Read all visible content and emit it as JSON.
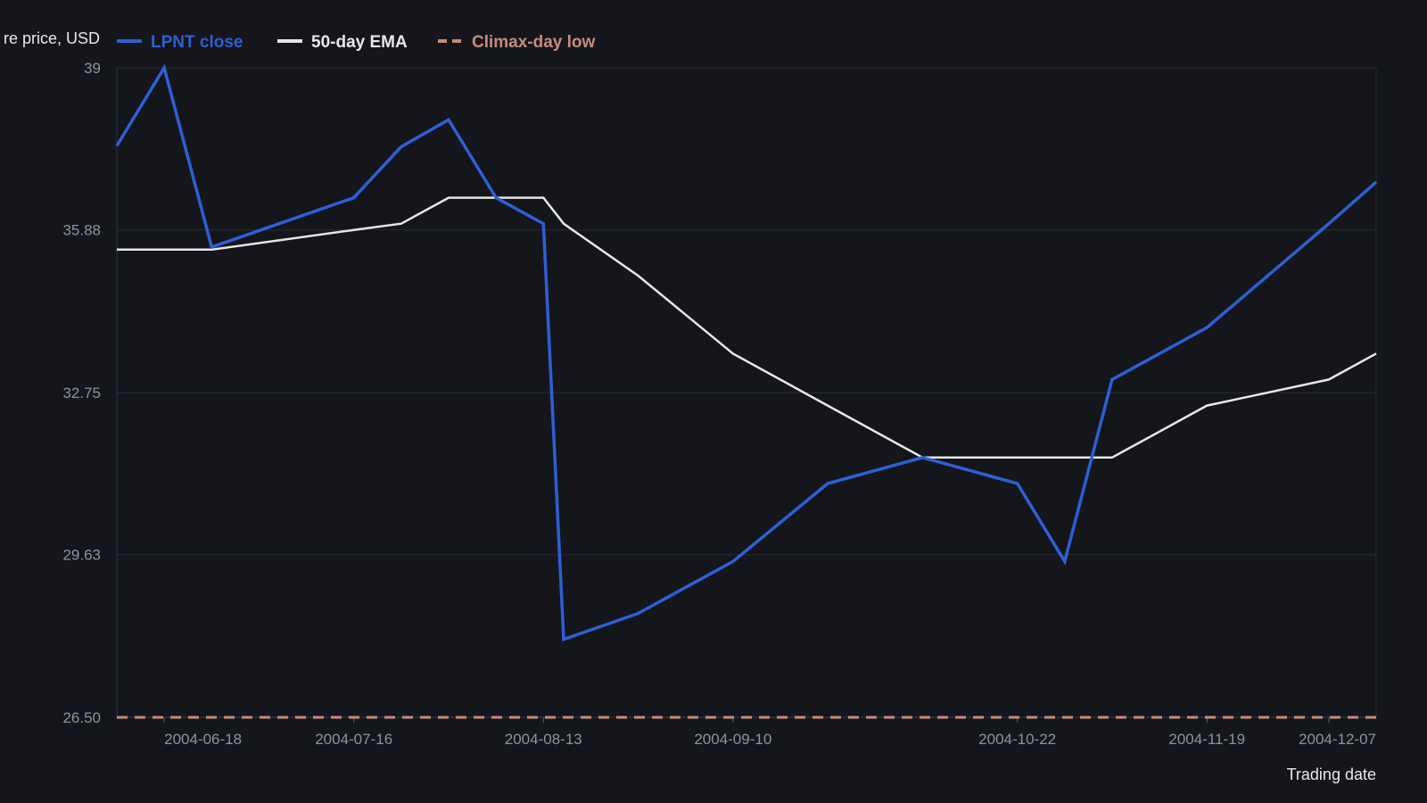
{
  "chart_data": {
    "type": "line",
    "title": "",
    "xlabel": "Trading date",
    "ylabel": "re price, USD",
    "x_ticks": [
      "2004-06-18",
      "2004-07-16",
      "2004-08-13",
      "2004-09-10",
      "2004-10-22",
      "2004-11-19",
      "2004-12-07"
    ],
    "y_ticks": [
      "39",
      "35.88",
      "32.75",
      "29.63",
      "26.50"
    ],
    "ylim": [
      26.5,
      39
    ],
    "xlim": [
      "2004-06-11",
      "2004-12-14"
    ],
    "grid": "horizontal",
    "legend_position": "top-left",
    "x": [
      "2004-06-11",
      "2004-06-18",
      "2004-06-25",
      "2004-07-16",
      "2004-07-23",
      "2004-07-30",
      "2004-08-06",
      "2004-08-13",
      "2004-08-16",
      "2004-08-27",
      "2004-09-10",
      "2004-09-24",
      "2004-10-08",
      "2004-10-22",
      "2004-10-29",
      "2004-11-05",
      "2004-11-19",
      "2004-12-07",
      "2004-12-14"
    ],
    "series": [
      {
        "name": "LPNT close",
        "color": "#2f5fd6",
        "style": "solid",
        "values": [
          37.5,
          39.0,
          35.55,
          36.5,
          37.48,
          38.0,
          36.5,
          36.0,
          28.0,
          28.5,
          29.5,
          31.0,
          31.5,
          31.0,
          29.5,
          33.0,
          34.0,
          36.0,
          36.8
        ]
      },
      {
        "name": "50-day EMA",
        "color": "#e6e6e6",
        "style": "solid",
        "values": [
          35.5,
          35.5,
          35.5,
          35.88,
          36.0,
          36.5,
          36.5,
          36.5,
          36.0,
          35.0,
          33.5,
          32.5,
          31.5,
          31.5,
          31.5,
          31.5,
          32.5,
          33.0,
          33.5
        ]
      },
      {
        "name": "Climax-day low",
        "color": "#c98a7c",
        "style": "dashed",
        "values": [
          26.5,
          26.5,
          26.5,
          26.5,
          26.5,
          26.5,
          26.5,
          26.5,
          26.5,
          26.5,
          26.5,
          26.5,
          26.5,
          26.5,
          26.5,
          26.5,
          26.5,
          26.5,
          26.5
        ]
      }
    ]
  }
}
